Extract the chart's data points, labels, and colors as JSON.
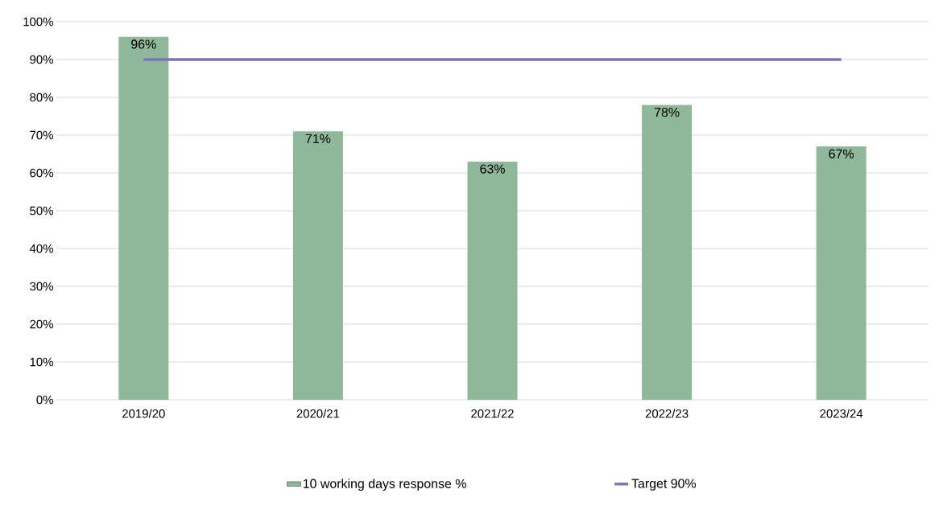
{
  "chart_data": {
    "type": "bar",
    "categories": [
      "2019/20",
      "2020/21",
      "2021/22",
      "2022/23",
      "2023/24"
    ],
    "series": [
      {
        "name": "10 working days response %",
        "color": "#8fb89a",
        "values": [
          96,
          71,
          63,
          78,
          67
        ],
        "value_labels": [
          "96%",
          "71%",
          "63%",
          "78%",
          "67%"
        ]
      },
      {
        "name": "Target 90%",
        "type": "line",
        "color": "#7b74b8",
        "values": [
          90,
          90,
          90,
          90,
          90
        ]
      }
    ],
    "ylim": [
      0,
      100
    ],
    "yticks": [
      {
        "value": 0,
        "label": "0%"
      },
      {
        "value": 10,
        "label": "10%"
      },
      {
        "value": 20,
        "label": "20%"
      },
      {
        "value": 30,
        "label": "30%"
      },
      {
        "value": 40,
        "label": "40%"
      },
      {
        "value": 50,
        "label": "50%"
      },
      {
        "value": 60,
        "label": "60%"
      },
      {
        "value": 70,
        "label": "70%"
      },
      {
        "value": 80,
        "label": "80%"
      },
      {
        "value": 90,
        "label": "90%"
      },
      {
        "value": 100,
        "label": "100%"
      }
    ],
    "grid": "y",
    "legend": "bottom"
  }
}
